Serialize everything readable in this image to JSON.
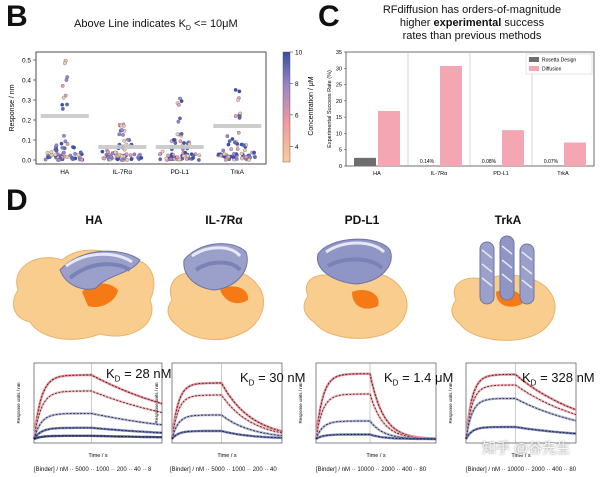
{
  "panel_b": {
    "letter": "B",
    "title_prefix": "Above Line indicates K",
    "title_sub": "D",
    "title_suffix": " <= 10μM",
    "ylabel": "Response / nm",
    "colorbar_label": "Concentration / μM",
    "colorbar_ticks": [
      "10",
      "8",
      "6",
      "4"
    ],
    "y_ticks": [
      "0.5",
      "0.4",
      "0.3",
      "0.2",
      "0.1",
      "0.0"
    ],
    "categories": [
      "HA",
      "IL-7Rα",
      "PD-L1",
      "TrkA"
    ]
  },
  "panel_c": {
    "letter": "C",
    "title_line1": "RFdiffusion has orders-of-magnitude",
    "title_line2_pre": "higher ",
    "title_line2_bold": "experimental",
    "title_line2_post": " success",
    "title_line3": "rates than previous methods",
    "ylabel": "Experimental Success Rate (%)",
    "y_ticks": [
      "35",
      "30",
      "25",
      "20",
      "15",
      "10",
      "5",
      "0"
    ],
    "legend_rosetta": "Rosetta Design",
    "legend_diffusion": "Diffusion",
    "color_rosetta": "#6e6e6e",
    "color_diffusion": "#f4a7b3"
  },
  "panel_d": {
    "letter": "D",
    "proteins": [
      {
        "name": "HA",
        "kd_prefix": "K",
        "kd_sub": "D",
        "kd_value": " = 28 nM",
        "xaxis": "Time / s",
        "conc": "[Binder] / nM ·· 5000 ·· 1000 ·· 200 ·· 40 ·· 8",
        "ylabel": "Response units / nm"
      },
      {
        "name": "IL-7Rα",
        "kd_prefix": "K",
        "kd_sub": "D",
        "kd_value": " = 30 nM",
        "xaxis": "Time / s",
        "conc": "[Binder] / nM ·· 5000 ·· 1000 ·· 200 ·· 40",
        "ylabel": "Response units / nm"
      },
      {
        "name": "PD-L1",
        "kd_prefix": "K",
        "kd_sub": "D",
        "kd_value": " = 1.4 μM",
        "xaxis": "Time / s",
        "conc": "[Binder] / nM ·· 10000 ·· 2000 ·· 400 ·· 80",
        "ylabel": "Response units / nm"
      },
      {
        "name": "TrkA",
        "kd_prefix": "K",
        "kd_sub": "D",
        "kd_value": " = 328 nM",
        "xaxis": "Time / s",
        "conc": "[Binder] / nM ·· 10000 ·· 2000 ·· 400 ·· 80",
        "ylabel": "Response units / nm"
      }
    ]
  },
  "watermark": "知乎 @谷先生",
  "chart_data": [
    {
      "type": "scatter",
      "title": "Above Line indicates K_D <= 10μM",
      "xlabel": "",
      "ylabel": "Response / nm",
      "categories": [
        "HA",
        "IL-7Rα",
        "PD-L1",
        "TrkA"
      ],
      "ylim": [
        0,
        0.52
      ],
      "threshold_lines": [
        0.22,
        0.065,
        0.065,
        0.17
      ],
      "max_values": [
        0.5,
        0.2,
        0.33,
        0.36
      ]
    },
    {
      "type": "bar",
      "title": "RFdiffusion has orders-of-magnitude higher experimental success rates than previous methods",
      "ylabel": "Experimental Success Rate (%)",
      "ylim": [
        0,
        35
      ],
      "categories": [
        "HA",
        "IL-7Rα",
        "PD-L1",
        "TrkA"
      ],
      "series": [
        {
          "name": "Rosetta Design",
          "values": [
            2.5,
            0.14,
            0.08,
            0.07
          ],
          "labels": [
            "",
            "0.14%",
            "0.08%",
            "0.07%"
          ]
        },
        {
          "name": "Diffusion",
          "values": [
            16.9,
            30.7,
            11,
            7.2
          ]
        }
      ]
    }
  ]
}
